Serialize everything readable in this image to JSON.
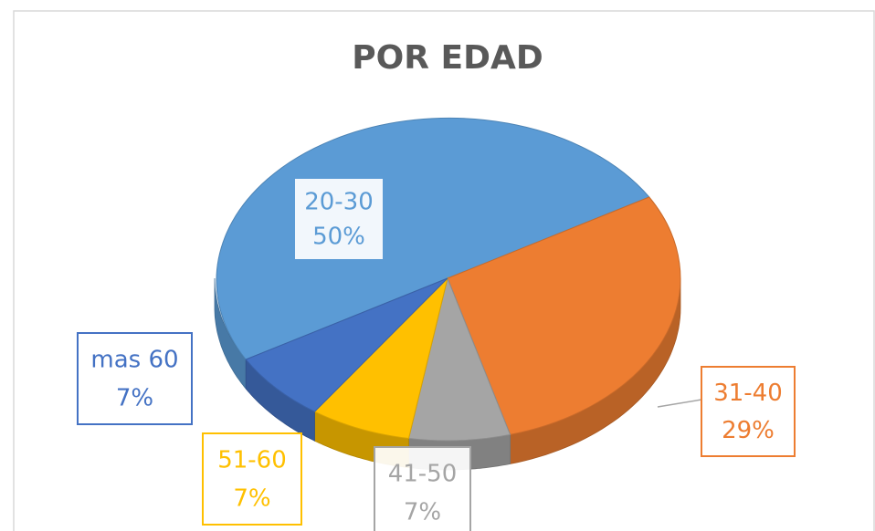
{
  "chart_data": {
    "type": "pie",
    "title": "POR EDAD",
    "categories": [
      "20-30",
      "31-40",
      "41-50",
      "51-60",
      "mas 60"
    ],
    "values": [
      50,
      29,
      7,
      7,
      7
    ],
    "value_labels": [
      "50%",
      "29%",
      "7%",
      "7%",
      "7%"
    ],
    "colors": [
      "#5b9bd5",
      "#ed7d31",
      "#a5a5a5",
      "#ffc000",
      "#4472c4"
    ]
  }
}
